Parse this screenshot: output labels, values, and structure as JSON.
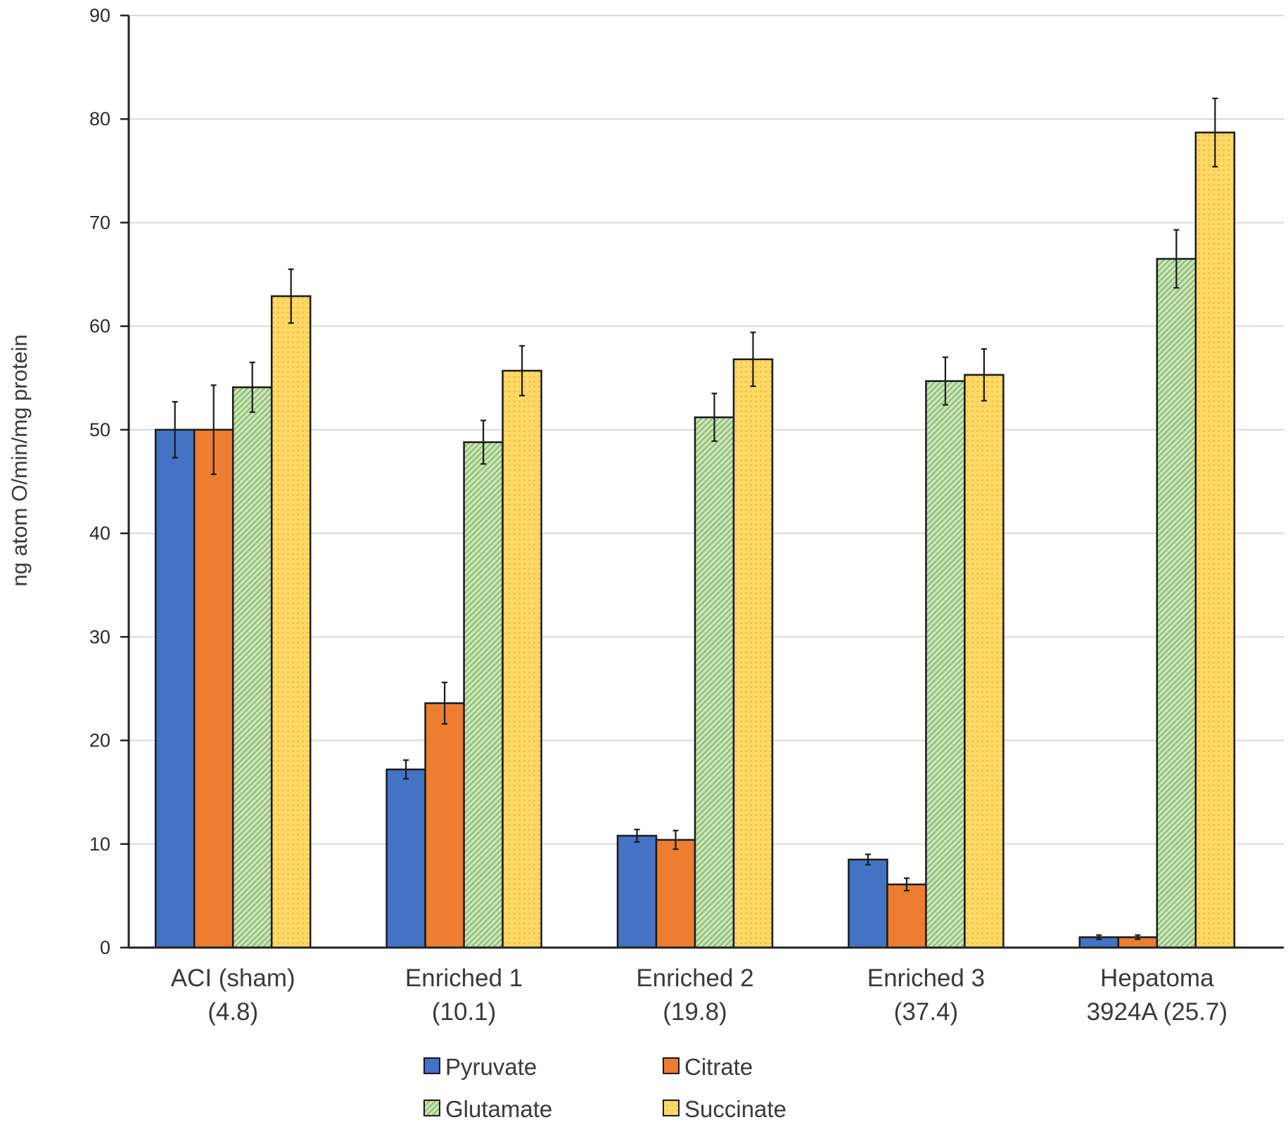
{
  "chart_data": {
    "type": "bar",
    "title": "",
    "xlabel": "",
    "ylabel": "ng atom O/min/mg protein",
    "ylim": [
      0,
      90
    ],
    "yticks": [
      0,
      10,
      20,
      30,
      40,
      50,
      60,
      70,
      80,
      90
    ],
    "grid": true,
    "legend_position": "bottom",
    "categories": [
      [
        "ACI (sham)",
        "(4.8)"
      ],
      [
        "Enriched 1",
        "(10.1)"
      ],
      [
        "Enriched 2",
        "(19.8)"
      ],
      [
        "Enriched 3",
        "(37.4)"
      ],
      [
        "Hepatoma",
        "3924A (25.7)"
      ]
    ],
    "series": [
      {
        "name": "Pyruvate",
        "color": "#4472c4",
        "pattern": "solid",
        "values": [
          50,
          17.2,
          10.8,
          8.5,
          1.0
        ],
        "errors": [
          2.7,
          0.9,
          0.6,
          0.5,
          0.2
        ]
      },
      {
        "name": "Citrate",
        "color": "#ed7d31",
        "pattern": "solid",
        "values": [
          50,
          23.6,
          10.4,
          6.1,
          1.0
        ],
        "errors": [
          4.3,
          2.0,
          0.9,
          0.6,
          0.2
        ]
      },
      {
        "name": "Glutamate",
        "color": "#a9d18e",
        "pattern": "hatch",
        "values": [
          54.1,
          48.8,
          51.2,
          54.7,
          66.5
        ],
        "errors": [
          2.4,
          2.1,
          2.3,
          2.3,
          2.8
        ]
      },
      {
        "name": "Succinate",
        "color": "#ffd966",
        "pattern": "dots",
        "values": [
          62.9,
          55.7,
          56.8,
          55.3,
          78.7
        ],
        "errors": [
          2.6,
          2.4,
          2.6,
          2.5,
          3.3
        ]
      }
    ]
  }
}
